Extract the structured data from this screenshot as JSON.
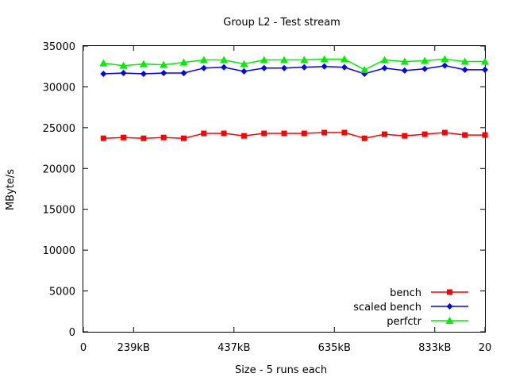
{
  "chart_data": {
    "type": "line",
    "title": "Group L2 - Test stream",
    "xlabel": "Size - 5 runs each",
    "ylabel": "MByte/s",
    "xlim": [
      0,
      20
    ],
    "ylim": [
      0,
      35000
    ],
    "x_ticks": [
      {
        "value": 0,
        "label": "0"
      },
      {
        "value": 2.5,
        "label": "239kB"
      },
      {
        "value": 7.5,
        "label": "437kB"
      },
      {
        "value": 12.5,
        "label": "635kB"
      },
      {
        "value": 17.5,
        "label": "833kB"
      },
      {
        "value": 20,
        "label": "20"
      }
    ],
    "y_ticks": [
      0,
      5000,
      10000,
      15000,
      20000,
      25000,
      30000,
      35000
    ],
    "grid": false,
    "legend": "bottom-right",
    "x": [
      1,
      2,
      3,
      4,
      5,
      6,
      7,
      8,
      9,
      10,
      11,
      12,
      13,
      14,
      15,
      16,
      17,
      18,
      19,
      20
    ],
    "series": [
      {
        "name": "bench",
        "color": "#ff0000",
        "marker": "square",
        "values": [
          23700,
          23800,
          23700,
          23800,
          23700,
          24300,
          24300,
          24000,
          24300,
          24300,
          24300,
          24400,
          24400,
          23700,
          24200,
          24000,
          24200,
          24400,
          24100,
          24100
        ]
      },
      {
        "name": "scaled bench",
        "color": "#0000ff",
        "marker": "diamond",
        "values": [
          31600,
          31700,
          31600,
          31700,
          31700,
          32300,
          32400,
          31900,
          32300,
          32300,
          32400,
          32500,
          32400,
          31600,
          32300,
          32000,
          32200,
          32600,
          32100,
          32100
        ]
      },
      {
        "name": "perfctr",
        "color": "#00ee00",
        "marker": "triangle",
        "values": [
          32900,
          32600,
          32800,
          32700,
          33000,
          33300,
          33300,
          32800,
          33300,
          33300,
          33300,
          33400,
          33400,
          32100,
          33300,
          33100,
          33200,
          33400,
          33100,
          33100
        ]
      }
    ]
  }
}
